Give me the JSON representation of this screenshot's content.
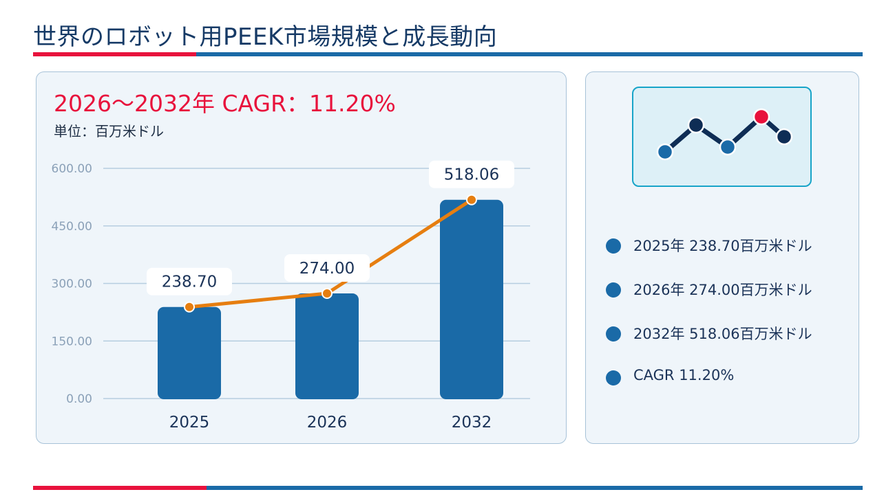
{
  "header": {
    "title": "世界のロボット用PEEK市場規模と成長動向"
  },
  "chart_panel": {
    "cagr_text": "2026〜2032年 CAGR：11.20%",
    "unit_text": "単位：百万米ドル"
  },
  "legend": {
    "items": [
      {
        "label": "2025年  238.70百万米ドル"
      },
      {
        "label": "2026年  274.00百万米ドル"
      },
      {
        "label": "2032年  518.06百万米ドル"
      },
      {
        "label": "CAGR  11.20%"
      }
    ]
  },
  "colors": {
    "bar": "#1a6aa7",
    "line": "#e67e10",
    "accent_red": "#e8123c",
    "grid": "#b6cde0"
  },
  "icons": {
    "legend_panel_icon": "line-chart-icon"
  },
  "chart_data": {
    "type": "bar",
    "categories": [
      "2025",
      "2026",
      "2032"
    ],
    "values": [
      238.7,
      274.0,
      518.06
    ],
    "data_labels": [
      "238.70",
      "274.00",
      "518.06"
    ],
    "overlay_line": {
      "type": "line",
      "values": [
        238.7,
        274.0,
        518.06
      ]
    },
    "yticks": [
      "0.00",
      "150.00",
      "300.00",
      "450.00",
      "600.00"
    ],
    "ylim": [
      0,
      600
    ],
    "grid": true,
    "title": "",
    "xlabel": "",
    "ylabel": ""
  }
}
